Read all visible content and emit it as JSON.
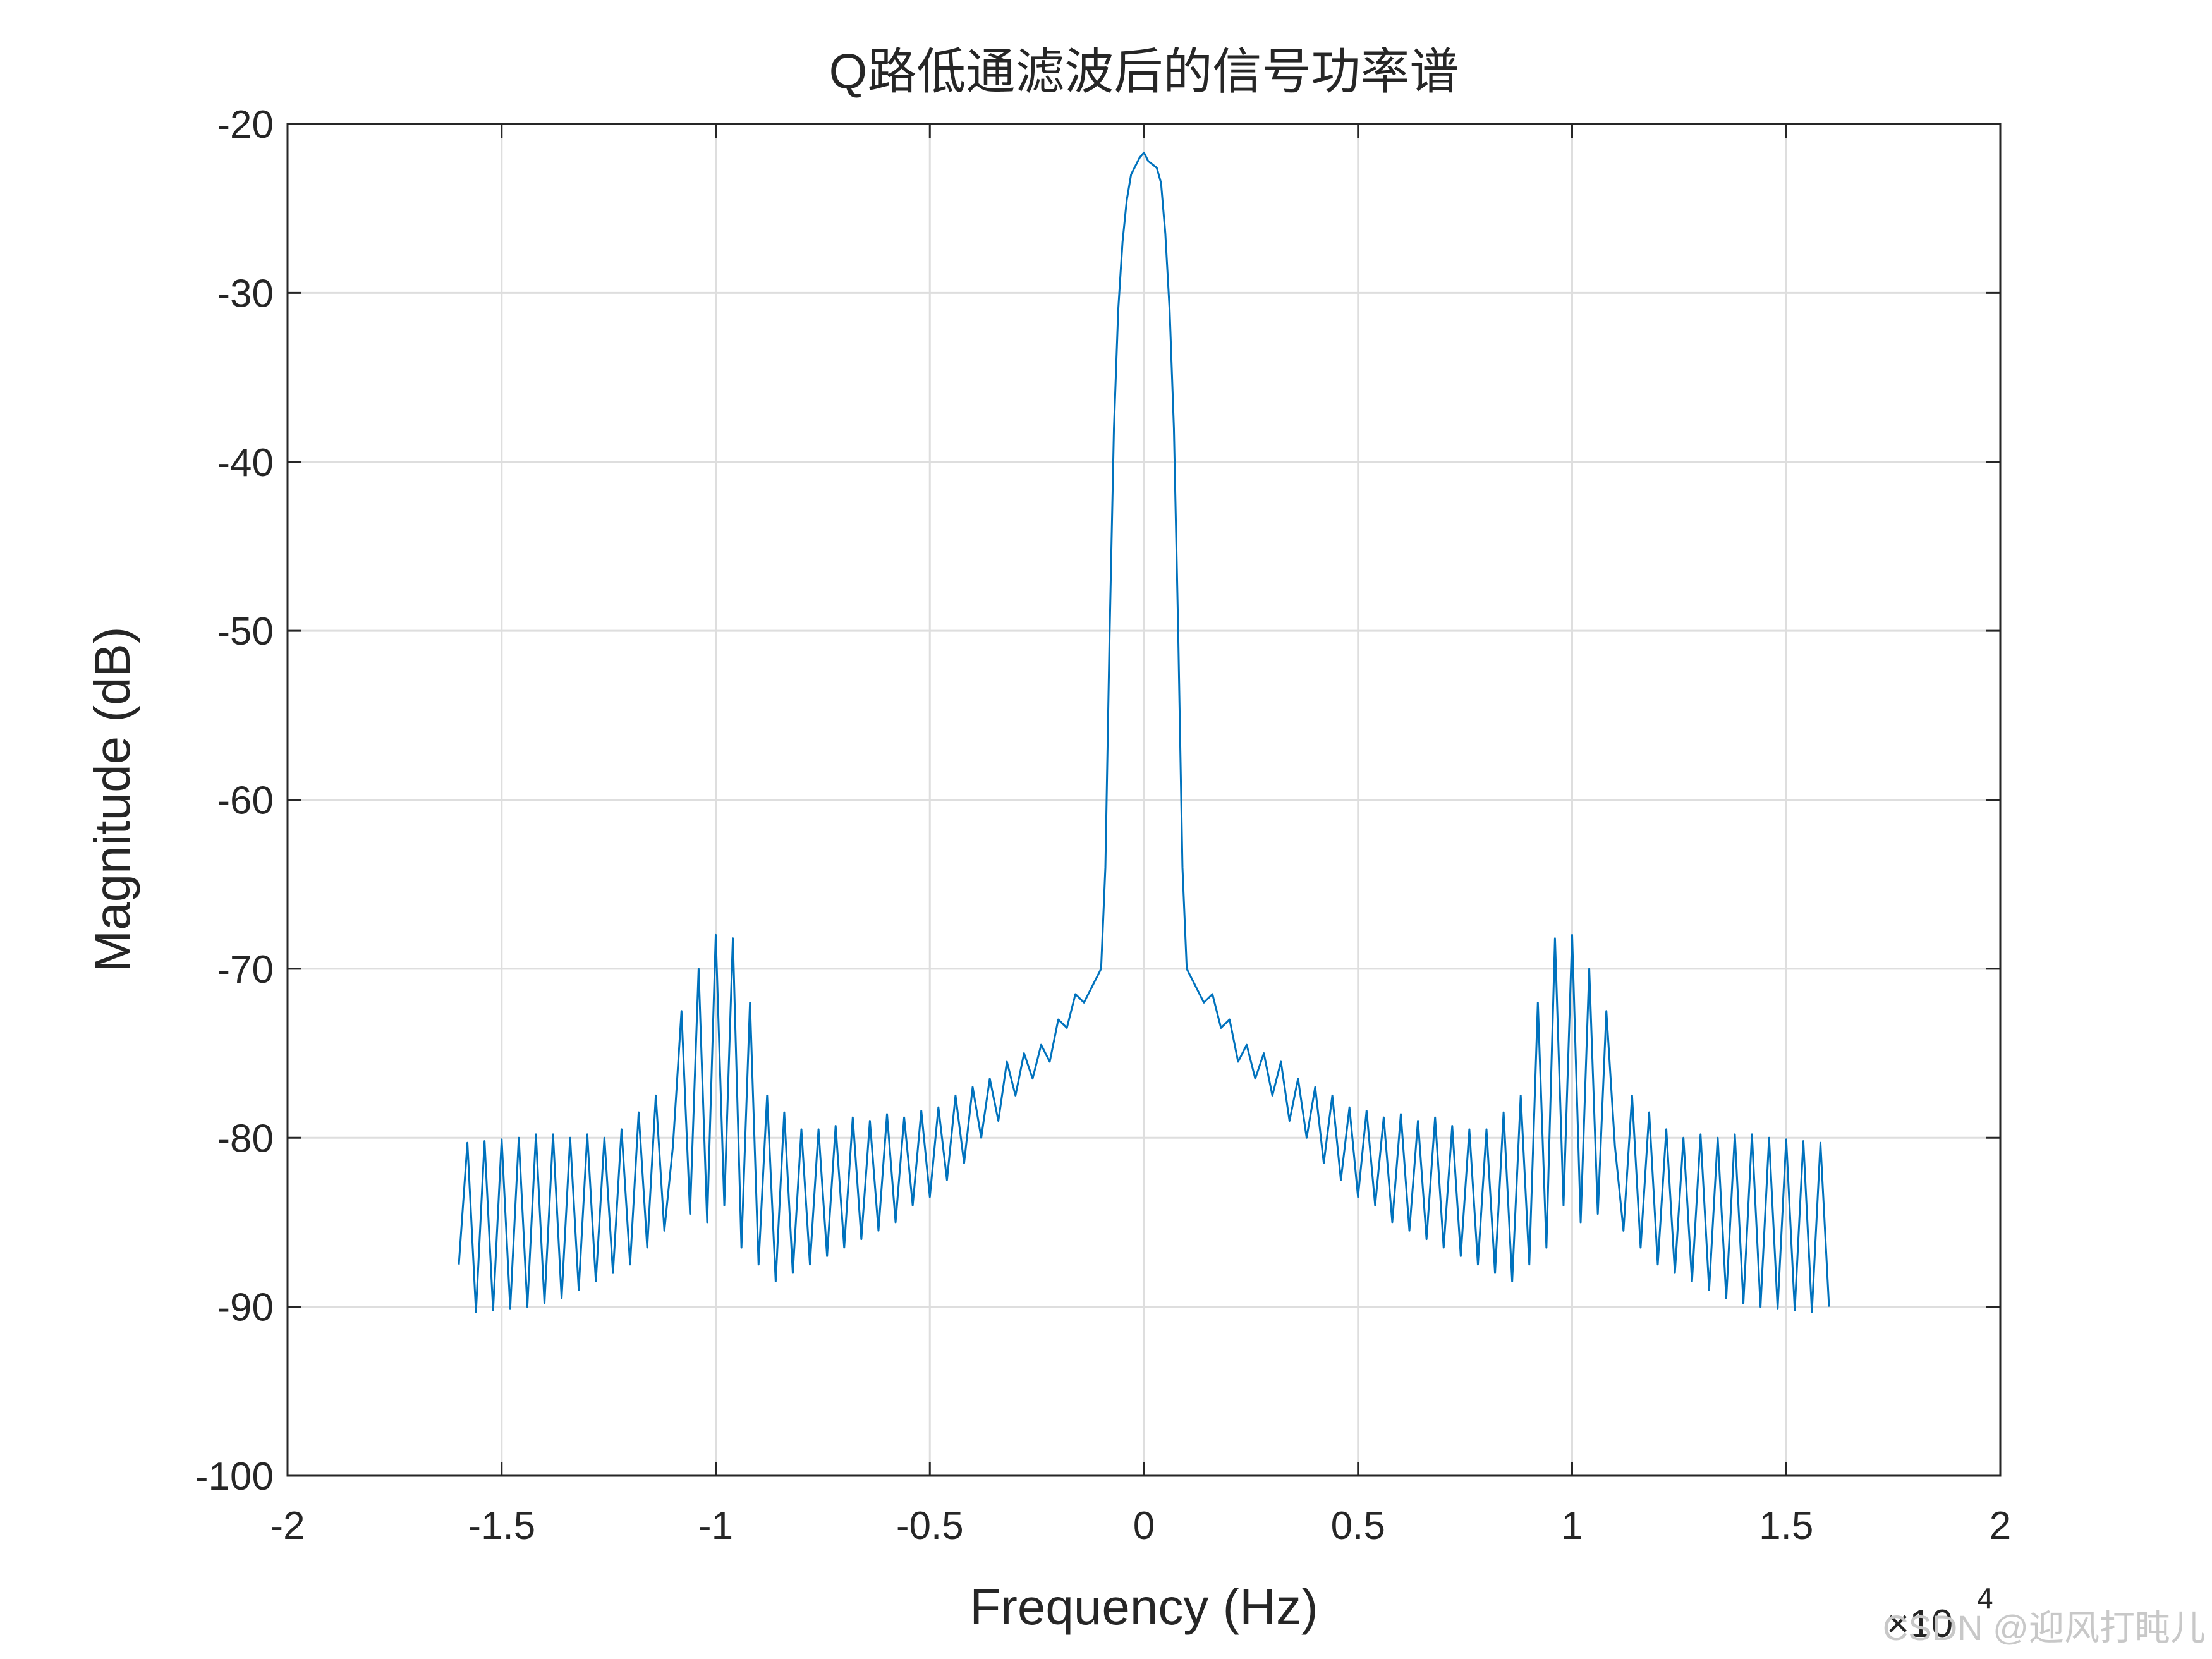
{
  "chart_data": {
    "type": "line",
    "title": "Q路低通滤波后的信号功率谱",
    "xlabel": "Frequency (Hz)",
    "ylabel": "Magnitude (dB)",
    "x_multiplier": "×10",
    "x_multiplier_exponent": "4",
    "watermark": "CSDN @迎风打盹儿",
    "xlim": [
      -20000,
      20000
    ],
    "ylim": [
      -100,
      -20
    ],
    "xticks": [
      {
        "value": -20000,
        "label": "-2"
      },
      {
        "value": -15000,
        "label": "-1.5"
      },
      {
        "value": -10000,
        "label": "-1"
      },
      {
        "value": -5000,
        "label": "-0.5"
      },
      0,
      {
        "value": 5000,
        "label": "0.5"
      },
      {
        "value": 10000,
        "label": "1"
      },
      {
        "value": 15000,
        "label": "1.5"
      },
      {
        "value": 20000,
        "label": "2"
      }
    ],
    "yticks": [
      -100,
      -90,
      -80,
      -70,
      -60,
      -50,
      -40,
      -30,
      -20
    ],
    "grid": true,
    "series": [
      {
        "color": "#0072bd",
        "x": [
          -16000,
          -15800,
          -15600,
          -15400,
          -15200,
          -15000,
          -14800,
          -14600,
          -14400,
          -14200,
          -14000,
          -13800,
          -13600,
          -13400,
          -13200,
          -13000,
          -12800,
          -12600,
          -12400,
          -12200,
          -12000,
          -11800,
          -11600,
          -11400,
          -11200,
          -11000,
          -10800,
          -10600,
          -10400,
          -10200,
          -10000,
          -9800,
          -9600,
          -9400,
          -9200,
          -9000,
          -8800,
          -8600,
          -8400,
          -8200,
          -8000,
          -7800,
          -7600,
          -7400,
          -7200,
          -7000,
          -6800,
          -6600,
          -6400,
          -6200,
          -6000,
          -5800,
          -5600,
          -5400,
          -5200,
          -5000,
          -4800,
          -4600,
          -4400,
          -4200,
          -4000,
          -3800,
          -3600,
          -3400,
          -3200,
          -3000,
          -2800,
          -2600,
          -2400,
          -2200,
          -2000,
          -1800,
          -1600,
          -1400,
          -1200,
          -1000,
          -900,
          -800,
          -700,
          -600,
          -500,
          -400,
          -300,
          -200,
          -100,
          0,
          100,
          200,
          300,
          400,
          500,
          600,
          700,
          800,
          900,
          1000,
          1200,
          1400,
          1600,
          1800,
          2000,
          2200,
          2400,
          2600,
          2800,
          3000,
          3200,
          3400,
          3600,
          3800,
          4000,
          4200,
          4400,
          4600,
          4800,
          5000,
          5200,
          5400,
          5600,
          5800,
          6000,
          6200,
          6400,
          6600,
          6800,
          7000,
          7200,
          7400,
          7600,
          7800,
          8000,
          8200,
          8400,
          8600,
          8800,
          9000,
          9200,
          9400,
          9600,
          9800,
          10000,
          10200,
          10400,
          10600,
          10800,
          11000,
          11200,
          11400,
          11600,
          11800,
          12000,
          12200,
          12400,
          12600,
          12800,
          13000,
          13200,
          13400,
          13600,
          13800,
          14000,
          14200,
          14400,
          14600,
          14800,
          15000,
          15200,
          15400,
          15600,
          15800,
          16000
        ],
        "values": [
          -87.5,
          -80.3,
          -90.3,
          -80.2,
          -90.2,
          -80.1,
          -90.1,
          -80,
          -90,
          -79.8,
          -89.8,
          -79.8,
          -89.5,
          -80,
          -89,
          -79.8,
          -88.5,
          -80,
          -88,
          -79.5,
          -87.5,
          -78.5,
          -86.5,
          -77.5,
          -85.5,
          -80.5,
          -72.5,
          -84.5,
          -70,
          -85,
          -68,
          -84,
          -68.2,
          -86.5,
          -72,
          -87.5,
          -77.5,
          -88.5,
          -78.5,
          -88,
          -79.5,
          -87.5,
          -79.5,
          -87,
          -79.3,
          -86.5,
          -78.8,
          -86,
          -79,
          -85.5,
          -78.6,
          -85,
          -78.8,
          -84,
          -78.4,
          -83.5,
          -78.2,
          -82.5,
          -77.5,
          -81.5,
          -77,
          -80,
          -76.5,
          -79,
          -75.5,
          -77.5,
          -75,
          -76.5,
          -74.5,
          -75.5,
          -73,
          -73.5,
          -71.5,
          -72,
          -71,
          -70,
          -64,
          -50,
          -38,
          -31,
          -27,
          -24.5,
          -23,
          -22.5,
          -22,
          -21.7,
          -22.2,
          -22.4,
          -22.6,
          -23.5,
          -26.5,
          -31,
          -38,
          -50,
          -64,
          -70,
          -71,
          -72,
          -71.5,
          -73.5,
          -73,
          -75.5,
          -74.5,
          -76.5,
          -75,
          -77.5,
          -75.5,
          -79,
          -76.5,
          -80,
          -77,
          -81.5,
          -77.5,
          -82.5,
          -78.2,
          -83.5,
          -78.4,
          -84,
          -78.8,
          -85,
          -78.6,
          -85.5,
          -79,
          -86,
          -78.8,
          -86.5,
          -79.3,
          -87,
          -79.5,
          -87.5,
          -79.5,
          -88,
          -78.5,
          -88.5,
          -77.5,
          -87.5,
          -72,
          -86.5,
          -68.2,
          -84,
          -68,
          -85,
          -70,
          -84.5,
          -72.5,
          -80.5,
          -85.5,
          -77.5,
          -86.5,
          -78.5,
          -87.5,
          -79.5,
          -88,
          -80,
          -88.5,
          -79.8,
          -89,
          -80,
          -89.5,
          -79.8,
          -89.8,
          -79.8,
          -90,
          -80,
          -90.1,
          -80.1,
          -90.2,
          -80.2,
          -90.3,
          -80.3,
          -90
        ]
      }
    ]
  }
}
